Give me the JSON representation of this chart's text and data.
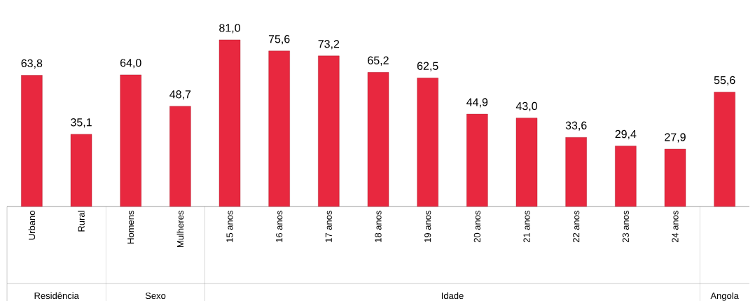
{
  "chart_data": {
    "type": "bar",
    "categories": [
      "Urbano",
      "Rural",
      "Homens",
      "Mulheres",
      "15 anos",
      "16 anos",
      "17 anos",
      "18 anos",
      "19 anos",
      "20 anos",
      "21 anos",
      "22 anos",
      "23 anos",
      "24 anos",
      null
    ],
    "values": [
      63.8,
      35.1,
      64.0,
      48.7,
      81.0,
      75.6,
      73.2,
      65.2,
      62.5,
      44.9,
      43.0,
      33.6,
      29.4,
      27.9,
      55.6
    ],
    "value_labels": [
      "63,8",
      "35,1",
      "64,0",
      "48,7",
      "81,0",
      "75,6",
      "73,2",
      "65,2",
      "62,5",
      "44,9",
      "43,0",
      "33,6",
      "29,4",
      "27,9",
      "55,6"
    ],
    "color": "#e8283f",
    "annotations": [
      "Residência",
      "Sexo",
      "Idade",
      "Angola"
    ],
    "legend": false
  }
}
